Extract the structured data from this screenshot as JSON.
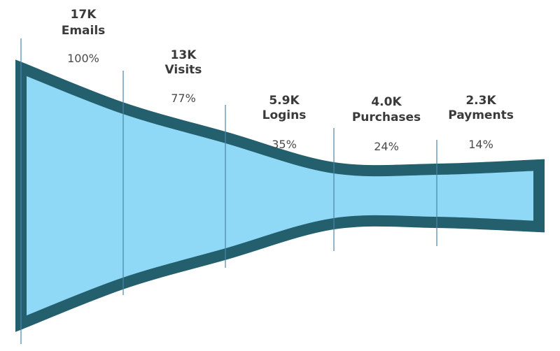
{
  "chart_data": {
    "type": "funnel",
    "title": "",
    "stages": [
      {
        "name": "Emails",
        "value": 17000,
        "value_label": "17K",
        "percent_label": "100%"
      },
      {
        "name": "Visits",
        "value": 13000,
        "value_label": "13K",
        "percent_label": "77%"
      },
      {
        "name": "Logins",
        "value": 5900,
        "value_label": "5.9K",
        "percent_label": "35%"
      },
      {
        "name": "Purchases",
        "value": 4000,
        "value_label": "4.0K",
        "percent_label": "24%"
      },
      {
        "name": "Payments",
        "value": 2300,
        "value_label": "2.3K",
        "percent_label": "14%"
      }
    ],
    "colors": {
      "fill": "#8fd9f7",
      "outline": "#245f6e",
      "divider": "#4a86a8",
      "text": "#3a3a3a"
    }
  }
}
